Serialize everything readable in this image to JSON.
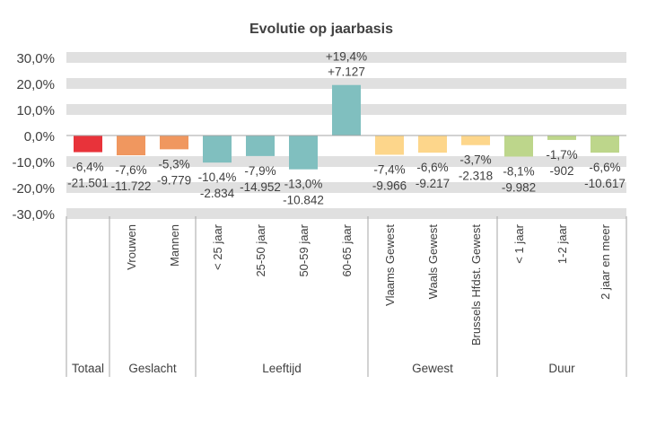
{
  "chart_data": {
    "type": "bar",
    "title": "Evolutie op jaarbasis",
    "xlabel": "",
    "ylabel": "",
    "ylim": [
      -30,
      30
    ],
    "yticks": [
      "30,0%",
      "20,0%",
      "10,0%",
      "0,0%",
      "-10,0%",
      "-20,0%",
      "-30,0%"
    ],
    "ytick_values": [
      30,
      20,
      10,
      0,
      -10,
      -20,
      -30
    ],
    "grid": "horizontal bands",
    "groups": [
      {
        "label": "Totaal",
        "count": 1,
        "color": "#E8333A"
      },
      {
        "label": "Geslacht",
        "count": 2,
        "color": "#F0975F"
      },
      {
        "label": "Leeftijd",
        "count": 4,
        "color": "#80BFBF"
      },
      {
        "label": "Gewest",
        "count": 3,
        "color": "#FDD68B"
      },
      {
        "label": "Duur",
        "count": 3,
        "color": "#BDD68B"
      }
    ],
    "categories": [
      "",
      "Vrouwen",
      "Mannen",
      "< 25 jaar",
      "25-50 jaar",
      "50-59 jaar",
      "60-65 jaar",
      "Vlaams Gewest",
      "Waals Gewest",
      "Brussels Hfdst. Gewest",
      "< 1 jaar",
      "1-2 jaar",
      "2 jaar en meer"
    ],
    "values": [
      -6.4,
      -7.6,
      -5.3,
      -10.4,
      -7.9,
      -13.0,
      19.4,
      -7.4,
      -6.6,
      -3.7,
      -8.1,
      -1.7,
      -6.6
    ],
    "pct_labels": [
      "-6,4%",
      "-7,6%",
      "-5,3%",
      "-10,4%",
      "-7,9%",
      "-13,0%",
      "+19,4%",
      "-7,4%",
      "-6,6%",
      "-3,7%",
      "-8,1%",
      "-1,7%",
      "-6,6%"
    ],
    "abs_labels": [
      "-21.501",
      "-11.722",
      "-9.779",
      "-2.834",
      "-14.952",
      "-10.842",
      "+7.127",
      "-9.966",
      "-9.217",
      "-2.318",
      "-9.982",
      "-902",
      "-10.617"
    ]
  }
}
